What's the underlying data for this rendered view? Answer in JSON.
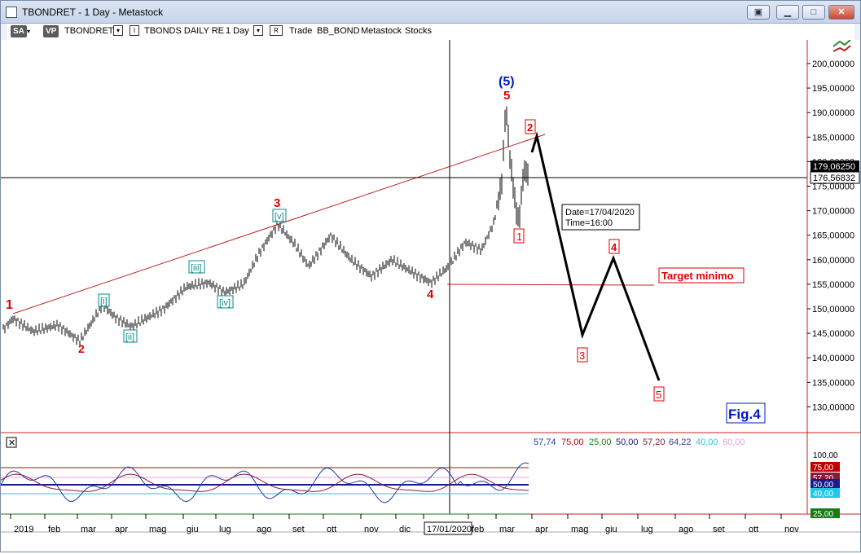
{
  "window": {
    "title": "TBONDRET - 1 Day - Metastock",
    "buttons": [
      "restore-alt",
      "minimize",
      "maximize",
      "close"
    ]
  },
  "toolbar": {
    "sa": "SA",
    "vp": "VP",
    "symbol": "TBONDRET",
    "indicator_flag": "I",
    "series_name": "TBONDS DAILY RE",
    "period": "1 Day",
    "r_flag": "R",
    "trade": "Trade",
    "account": "BB_BOND",
    "source": "Metastock",
    "mode": "Stocks"
  },
  "chart_data": [
    {
      "type": "bar",
      "panel": "price",
      "price_axis_labels": [
        "200,00000",
        "195,00000",
        "190,00000",
        "185,00000",
        "180,00000",
        "175,00000",
        "170,00000",
        "165,00000",
        "160,00000",
        "155,00000",
        "150,00000",
        "145,00000",
        "140,00000",
        "135,00000",
        "130,00000"
      ],
      "ylim": [
        128,
        204
      ],
      "last_price_label": "179,06250",
      "cursor_price_label": "176,56832",
      "x_labels": [
        "2019",
        "feb",
        "mar",
        "apr",
        "mag",
        "giu",
        "lug",
        "ago",
        "set",
        "ott",
        "nov",
        "dic",
        "17/01/2020",
        "feb",
        "mar",
        "apr",
        "mag",
        "giu",
        "lug",
        "ago",
        "set",
        "ott",
        "nov"
      ],
      "cursor_tooltip": {
        "date": "Date=17/04/2020",
        "time": "Time=16:00"
      },
      "wave_labels": {
        "major": [
          "1",
          "2",
          "3",
          "4",
          "5",
          "(5)"
        ],
        "minor": [
          "[i]",
          "[ii]",
          "[iii]",
          "[iv]",
          "[v]"
        ],
        "projected": [
          "1",
          "2",
          "3",
          "4",
          "5"
        ]
      },
      "target_label": "Target minimo",
      "figure_label": "Fig.4"
    },
    {
      "type": "line",
      "panel": "oscillator",
      "readout_values": [
        "57,74",
        "75,00",
        "25,00",
        "50,00",
        "57,20",
        "64,22",
        "40,00",
        "60,00"
      ],
      "readout_colors": [
        "#1a3ca8",
        "#c00000",
        "#1a7a1a",
        "#1a1a8a",
        "#8a1a3a",
        "#3a3a9a",
        "#20c8e8",
        "#e8a0d8"
      ],
      "axis_labels": [
        "100,00",
        "75,00",
        "57,20",
        "50,00",
        "40,00",
        "25,00"
      ],
      "ylim": [
        0,
        110
      ]
    }
  ],
  "colors": {
    "wave_red": "#e00000",
    "wave_blue": "#0018c0",
    "minor_teal": "#0a8a8a",
    "trendline": "#c02020",
    "projection": "#000000"
  }
}
